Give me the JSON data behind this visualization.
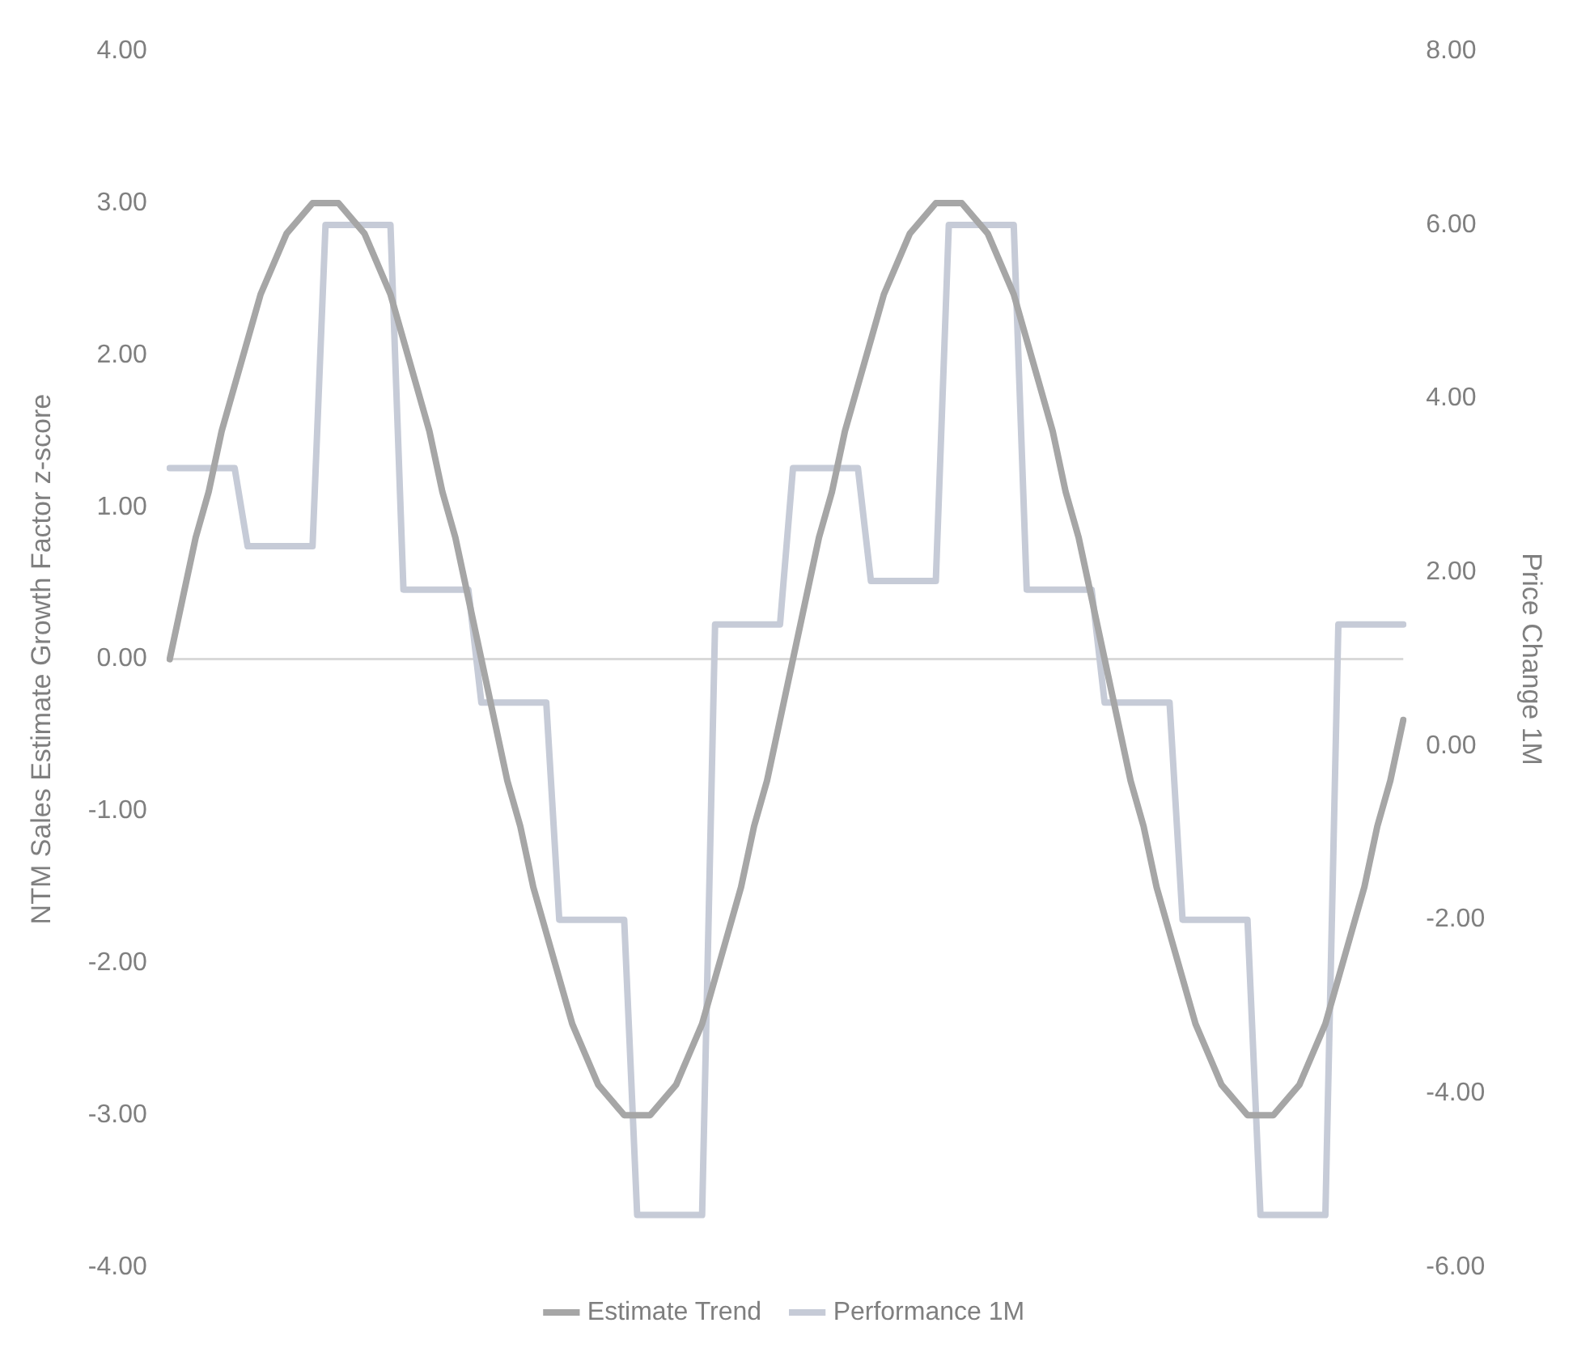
{
  "chart_data": {
    "type": "line",
    "ylabel": "NTM Sales Estimate Growth Factor z-score",
    "y2label": "Price Change 1M",
    "categories": [
      null,
      null,
      null,
      null,
      null,
      null,
      null,
      null,
      null,
      null,
      null,
      null,
      null,
      null,
      null,
      null,
      null,
      null,
      null,
      null,
      null,
      null,
      null,
      null,
      null,
      null,
      null,
      null,
      null,
      null,
      null,
      null,
      null,
      null,
      null,
      null,
      null,
      null,
      null,
      null,
      null,
      null,
      null,
      null,
      null,
      null,
      null,
      null,
      null,
      null,
      null,
      null,
      null,
      null,
      null,
      null,
      null,
      null,
      null,
      null,
      null,
      null,
      null,
      null,
      null,
      null,
      null,
      null,
      null,
      null,
      null,
      null,
      null,
      null,
      null,
      null,
      null,
      null,
      null,
      null,
      null,
      null,
      null,
      null,
      null,
      null,
      null,
      null,
      null,
      null,
      null,
      null,
      null,
      null,
      null,
      null
    ],
    "series": [
      {
        "name": "Estimate Trend",
        "color": "#a6a6a6",
        "values": [
          0,
          0.4,
          0.8,
          1.1,
          1.5,
          1.8,
          2.1,
          2.4,
          2.6,
          2.8,
          2.9,
          3,
          3,
          3,
          2.9,
          2.8,
          2.6,
          2.4,
          2.1,
          1.8,
          1.5,
          1.1,
          0.8,
          0.4,
          0,
          -0.4,
          -0.8,
          -1.1,
          -1.5,
          -1.8,
          -2.1,
          -2.4,
          -2.6,
          -2.8,
          -2.9,
          -3,
          -3,
          -3,
          -2.9,
          -2.8,
          -2.6,
          -2.4,
          -2.1,
          -1.8,
          -1.5,
          -1.1,
          -0.8,
          -0.4,
          0,
          0.4,
          0.8,
          1.1,
          1.5,
          1.8,
          2.1,
          2.4,
          2.6,
          2.8,
          2.9,
          3,
          3,
          3,
          2.9,
          2.8,
          2.6,
          2.4,
          2.1,
          1.8,
          1.5,
          1.1,
          0.8,
          0.4,
          0,
          -0.4,
          -0.8,
          -1.1,
          -1.5,
          -1.8,
          -2.1,
          -2.4,
          -2.6,
          -2.8,
          -2.9,
          -3,
          -3,
          -3,
          -2.9,
          -2.8,
          -2.6,
          -2.4,
          -2.1,
          -1.8,
          -1.5,
          -1.1,
          -0.8,
          -0.4
        ]
      },
      {
        "name": "Performance 1M",
        "color": "#c6cbd7",
        "axis": "y2",
        "values": [
          3.2,
          3.2,
          3.2,
          3.2,
          3.2,
          3.2,
          2.3,
          2.3,
          2.3,
          2.3,
          2.3,
          2.3,
          6,
          6,
          6,
          6,
          6,
          6,
          1.8,
          1.8,
          1.8,
          1.8,
          1.8,
          1.8,
          0.5,
          0.5,
          0.5,
          0.5,
          0.5,
          0.5,
          -2,
          -2,
          -2,
          -2,
          -2,
          -2,
          -5.4,
          -5.4,
          -5.4,
          -5.4,
          -5.4,
          -5.4,
          1.4,
          1.4,
          1.4,
          1.4,
          1.4,
          1.4,
          3.2,
          3.2,
          3.2,
          3.2,
          3.2,
          3.2,
          1.9,
          1.9,
          1.9,
          1.9,
          1.9,
          1.9,
          6,
          6,
          6,
          6,
          6,
          6,
          1.8,
          1.8,
          1.8,
          1.8,
          1.8,
          1.8,
          0.5,
          0.5,
          0.5,
          0.5,
          0.5,
          0.5,
          -2,
          -2,
          -2,
          -2,
          -2,
          -2,
          -5.4,
          -5.4,
          -5.4,
          -5.4,
          -5.4,
          -5.4,
          1.4,
          1.4,
          1.4,
          1.4,
          1.4,
          1.4
        ]
      }
    ],
    "ylim": [
      -4,
      4
    ],
    "yticks": [
      {
        "value": -4,
        "label": "-4.00"
      },
      {
        "value": -3,
        "label": "-3.00"
      },
      {
        "value": -2,
        "label": "-2.00"
      },
      {
        "value": -1,
        "label": "-1.00"
      },
      {
        "value": 0,
        "label": "0.00"
      },
      {
        "value": 1,
        "label": "1.00"
      },
      {
        "value": 2,
        "label": "2.00"
      },
      {
        "value": 3,
        "label": "3.00"
      },
      {
        "value": 4,
        "label": "4.00"
      }
    ],
    "y2lim": [
      -6,
      8
    ],
    "y2ticks": [
      {
        "value": -6,
        "label": "-6.00"
      },
      {
        "value": -4,
        "label": "-4.00"
      },
      {
        "value": -2,
        "label": "-2.00"
      },
      {
        "value": 0,
        "label": "0.00"
      },
      {
        "value": 2,
        "label": "2.00"
      },
      {
        "value": 4,
        "label": "4.00"
      },
      {
        "value": 6,
        "label": "6.00"
      },
      {
        "value": 8,
        "label": "8.00"
      }
    ],
    "ref_lines": [
      {
        "axis": "y",
        "value": 0,
        "color": "#d9d9d9"
      }
    ],
    "legend": "bottom",
    "grid": false,
    "marker": "none",
    "line_style": "solid"
  }
}
